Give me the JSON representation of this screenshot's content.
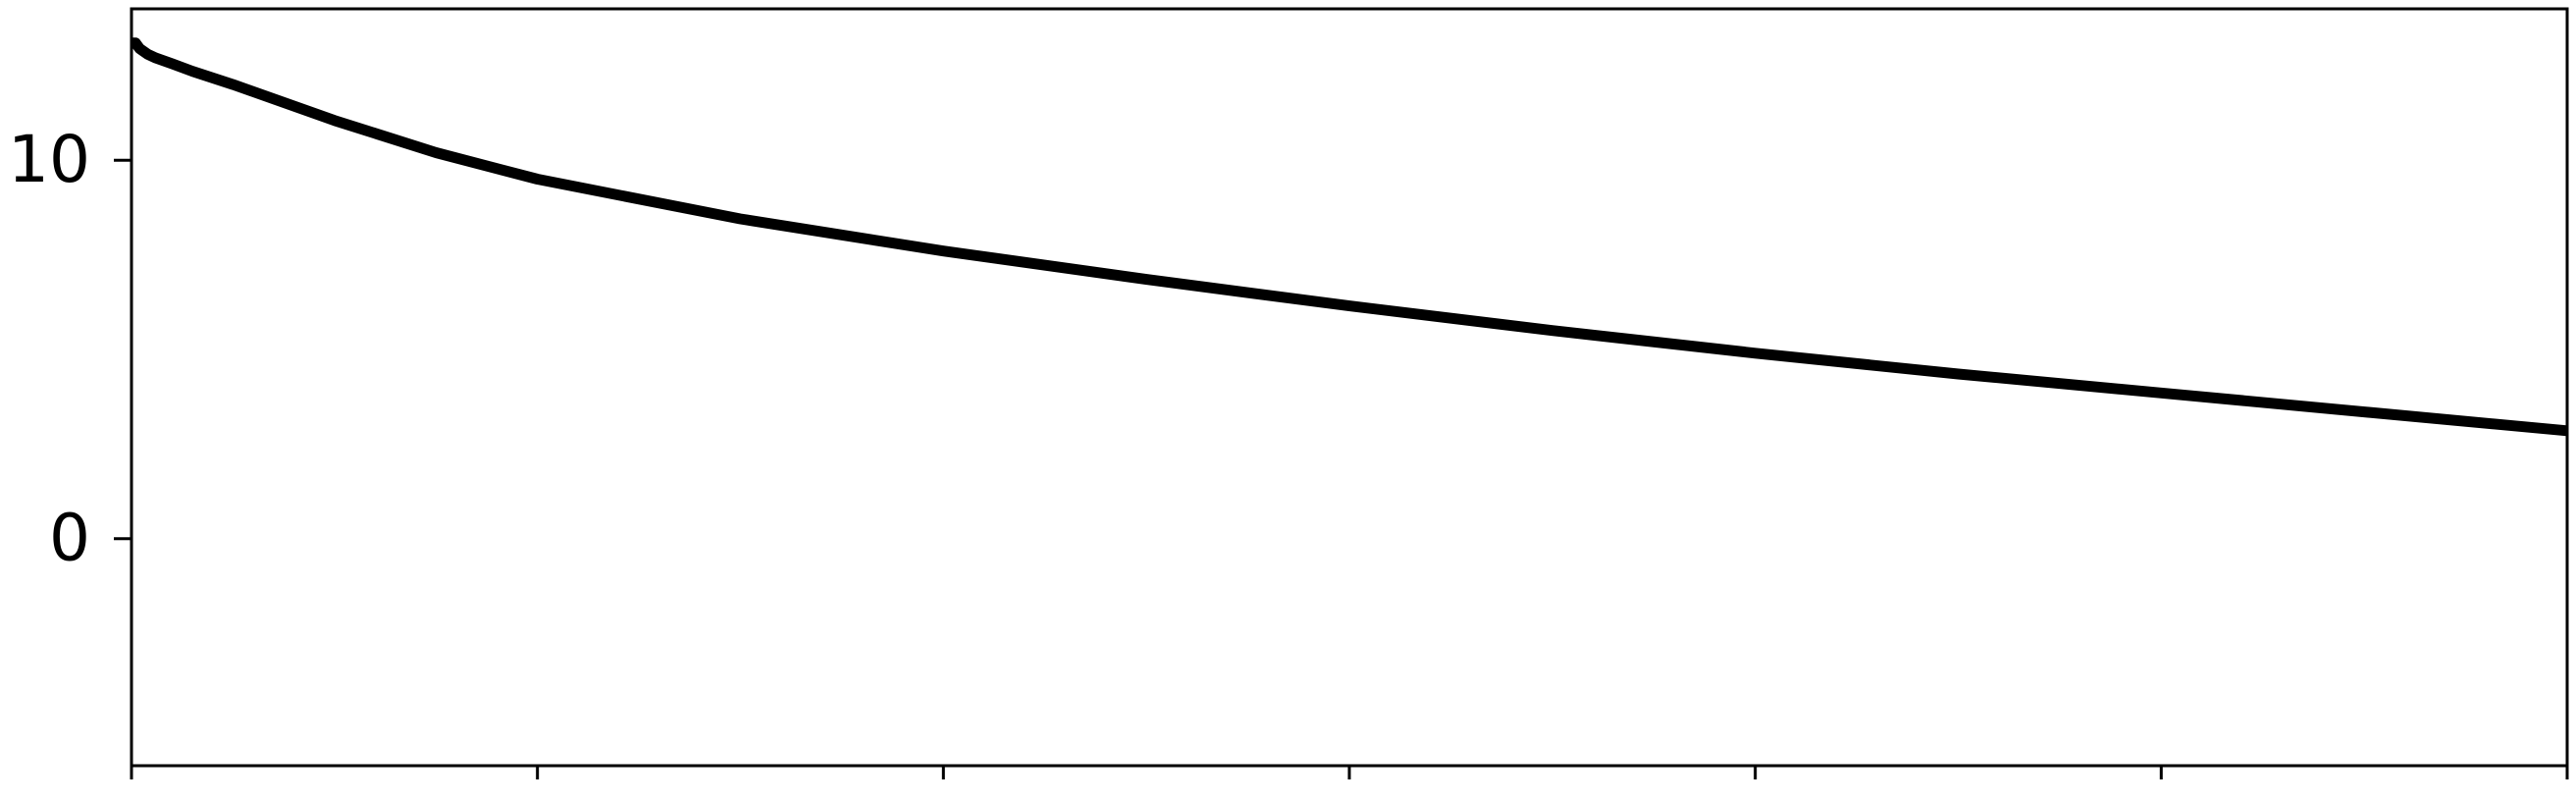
{
  "chart_data": {
    "type": "line",
    "title": "",
    "xlabel": "",
    "ylabel": "",
    "xlim": [
      0,
      6
    ],
    "ylim": [
      -6,
      14
    ],
    "x_ticks": [
      0,
      1,
      2,
      3,
      4,
      5,
      6
    ],
    "y_ticks": [
      {
        "value": 0,
        "label": "0"
      },
      {
        "value": 10,
        "label": "10"
      }
    ],
    "grid": false,
    "legend": "none",
    "series": [
      {
        "color": "#000000",
        "x": [
          0,
          0.01,
          0.02,
          0.04,
          0.06,
          0.1,
          0.15,
          0.25,
          0.5,
          0.75,
          1.0,
          1.5,
          2.0,
          2.5,
          3.0,
          3.5,
          4.0,
          4.5,
          5.0,
          5.5,
          6.0
        ],
        "y": [
          13.1,
          13.1,
          12.95,
          12.8,
          12.7,
          12.55,
          12.35,
          12.0,
          11.05,
          10.2,
          9.5,
          8.45,
          7.6,
          6.85,
          6.15,
          5.5,
          4.9,
          4.35,
          3.85,
          3.35,
          2.85
        ]
      }
    ]
  }
}
